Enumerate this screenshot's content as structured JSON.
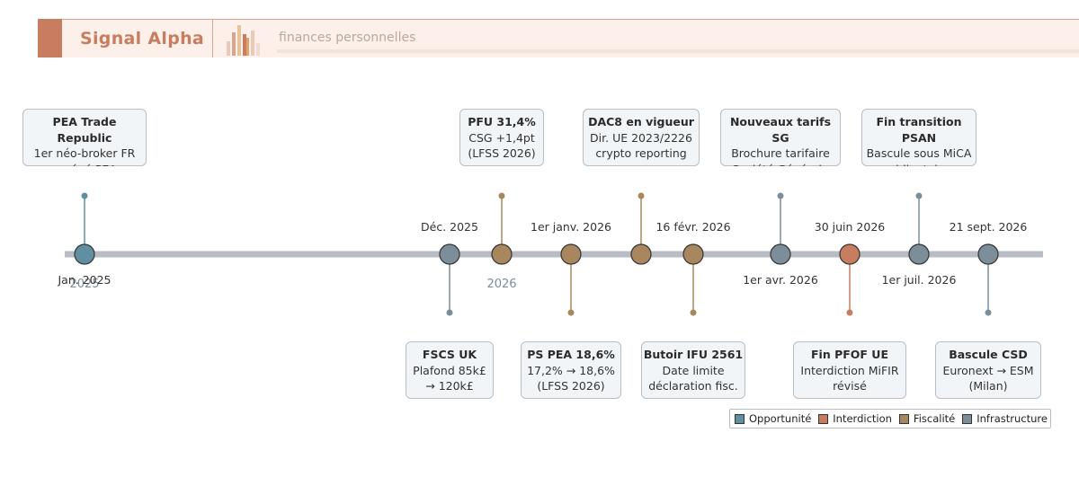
{
  "header": {
    "title": "Signal Alpha",
    "subtitle": "finances personnelles"
  },
  "colors": {
    "opportunite": "#5f8fa0",
    "interdiction": "#c97d60",
    "fiscalite": "#a8875e",
    "infrastructure": "#7b8e99",
    "axis": "#b8bcc4",
    "year_label": "#7b8e99"
  },
  "year_labels": [
    "2025",
    "2026"
  ],
  "legend": [
    {
      "label": "Opportunité",
      "category": "opportunite"
    },
    {
      "label": "Interdiction",
      "category": "interdiction"
    },
    {
      "label": "Fiscalité",
      "category": "fiscalite"
    },
    {
      "label": "Infrastructure",
      "category": "infrastructure"
    }
  ],
  "events": [
    {
      "date": "Jan. 2025",
      "category": "opportunite",
      "side": "above",
      "title": "PEA Trade Republic",
      "lines": [
        "1er néo-broker FR",
        "agrégé PEA"
      ]
    },
    {
      "date": "Déc. 2025",
      "category": "infrastructure",
      "side": "below",
      "title": "FSCS UK",
      "lines": [
        "Plafond 85k£",
        "→ 120k£"
      ]
    },
    {
      "date": "",
      "category": "fiscalite",
      "side": "above",
      "title": "PFU 31,4%",
      "lines": [
        "CSG +1,4pt",
        "(LFSS 2026)"
      ]
    },
    {
      "date": "1er janv. 2026",
      "category": "fiscalite",
      "side": "below",
      "title": "PS PEA 18,6%",
      "lines": [
        "17,2% → 18,6%",
        "(LFSS 2026)"
      ]
    },
    {
      "date": "",
      "category": "fiscalite",
      "side": "above",
      "title": "DAC8 en vigueur",
      "lines": [
        "Dir. UE 2023/2226",
        "crypto reporting"
      ]
    },
    {
      "date": "16 févr. 2026",
      "category": "fiscalite",
      "side": "below",
      "title": "Butoir IFU 2561",
      "lines": [
        "Date limite",
        "déclaration fisc."
      ]
    },
    {
      "date": "1er avr. 2026",
      "category": "infrastructure",
      "side": "above",
      "title": "Nouveaux tarifs SG",
      "lines": [
        "Brochure tarifaire",
        "Société Générale"
      ]
    },
    {
      "date": "30 juin 2026",
      "category": "interdiction",
      "side": "below",
      "title": "Fin PFOF UE",
      "lines": [
        "Interdiction MiFIR",
        "révisé"
      ]
    },
    {
      "date": "1er juil. 2026",
      "category": "infrastructure",
      "side": "above",
      "title": "Fin transition PSAN",
      "lines": [
        "Bascule sous MiCA",
        "obligatoire"
      ]
    },
    {
      "date": "21 sept. 2026",
      "category": "infrastructure",
      "side": "below",
      "title": "Bascule CSD",
      "lines": [
        "Euronext → ESM",
        "(Milan)"
      ]
    }
  ]
}
